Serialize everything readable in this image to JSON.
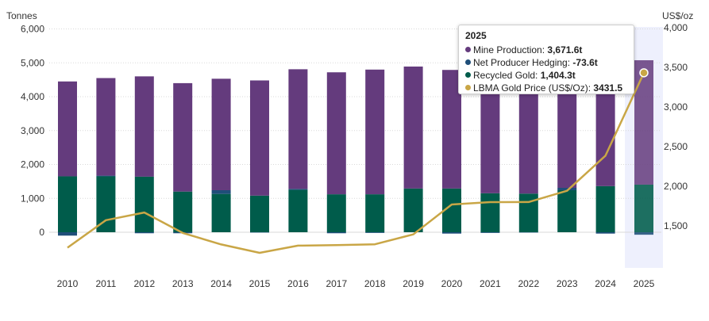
{
  "chart_data": {
    "type": "bar",
    "stacked": true,
    "categories": [
      "2010",
      "2011",
      "2012",
      "2013",
      "2014",
      "2015",
      "2016",
      "2017",
      "2018",
      "2019",
      "2020",
      "2021",
      "2022",
      "2023",
      "2024",
      "2025"
    ],
    "series": [
      {
        "name": "Mine Production",
        "color": "#643b7d",
        "axis": "left",
        "type": "bar",
        "values": [
          2800,
          2880,
          2960,
          3200,
          3290,
          3400,
          3530,
          3600,
          3680,
          3600,
          3500,
          3650,
          3460,
          3400,
          3650,
          3671.6
        ]
      },
      {
        "name": "Net Producer Hedging",
        "color": "#1f4e79",
        "axis": "left",
        "type": "bar",
        "values": [
          -100,
          20,
          -30,
          -30,
          110,
          -10,
          30,
          -30,
          -20,
          0,
          -40,
          -20,
          -10,
          70,
          -40,
          -73.6
        ]
      },
      {
        "name": "Recycled Gold",
        "color": "#005c4b",
        "axis": "left",
        "type": "bar",
        "values": [
          1650,
          1650,
          1640,
          1200,
          1130,
          1080,
          1250,
          1120,
          1120,
          1290,
          1290,
          1150,
          1140,
          1240,
          1360,
          1404.3
        ]
      },
      {
        "name": "LBMA Gold Price (US$/Oz)",
        "color": "#c9a646",
        "axis": "right",
        "type": "line",
        "values": [
          1225,
          1572,
          1669,
          1411,
          1266,
          1160,
          1251,
          1257,
          1268,
          1393,
          1770,
          1800,
          1801,
          1943,
          2386,
          3431.5
        ]
      }
    ],
    "y_left": {
      "label": "Tonnes",
      "range": [
        -500,
        6000
      ],
      "ticks": [
        0,
        1000,
        2000,
        3000,
        4000,
        5000,
        6000
      ],
      "tick_labels": [
        "0",
        "1,000",
        "2,000",
        "3,000",
        "4,000",
        "5,000",
        "6,000"
      ]
    },
    "y_right": {
      "label": "US$/oz",
      "range": [
        1100,
        4000
      ],
      "ticks": [
        1500,
        2000,
        2500,
        3000,
        3500,
        4000
      ],
      "tick_labels": [
        "1,500",
        "2,000",
        "2,500",
        "3,000",
        "3,500",
        "4,000"
      ]
    },
    "grid": true,
    "highlighted_category": "2025",
    "tooltip": {
      "title": "2025",
      "rows": [
        {
          "label": "Mine Production: ",
          "value": "3,671.6t",
          "color": "#643b7d"
        },
        {
          "label": "Net Producer Hedging: ",
          "value": "-73.6t",
          "color": "#1f4e79"
        },
        {
          "label": "Recycled Gold: ",
          "value": "1,404.3t",
          "color": "#005c4b"
        },
        {
          "label": "LBMA Gold Price (US$/Oz): ",
          "value": "3431.5",
          "color": "#c9a646"
        }
      ]
    }
  }
}
